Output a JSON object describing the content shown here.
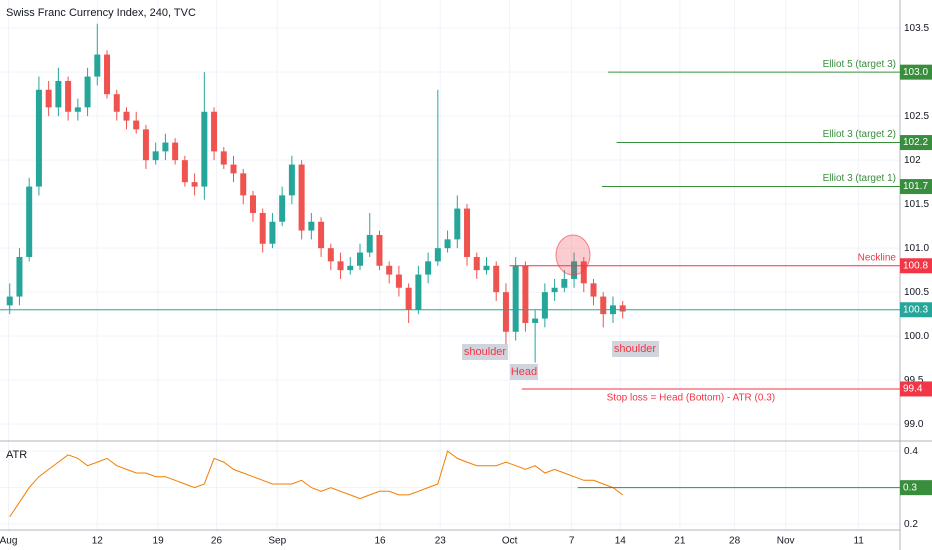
{
  "chart_data": [
    {
      "type": "candlestick",
      "title": "Swiss Franc Currency Index, 240, TVC",
      "x": [
        0.8,
        1.6,
        2.4,
        3.2,
        4,
        4.8,
        5.6,
        6.4,
        7.2,
        8,
        8.8,
        9.6,
        10.4,
        11.2,
        12,
        12.8,
        13.6,
        14.4,
        15.2,
        16,
        16.8,
        17.6,
        18.4,
        19.2,
        20,
        20.8,
        21.6,
        22.4,
        23.2,
        24,
        24.8,
        25.6,
        26.4,
        27.2,
        28,
        28.8,
        29.6,
        30.4,
        31.2,
        32,
        32.8,
        33.6,
        34.4,
        35.2,
        36,
        36.8,
        37.6,
        38.4,
        39.2,
        40,
        40.8,
        41.6,
        42.4,
        43.2,
        44,
        44.8,
        45.6,
        46.4,
        47.2,
        48,
        48.8,
        49.6,
        50.4,
        51.2
      ],
      "open": [
        100.35,
        100.45,
        100.9,
        101.7,
        102.8,
        102.6,
        102.9,
        102.55,
        102.6,
        102.95,
        103.2,
        102.75,
        102.55,
        102.45,
        102.35,
        102.0,
        102.1,
        102.2,
        102.0,
        101.75,
        101.7,
        102.55,
        102.1,
        101.95,
        101.85,
        101.6,
        101.4,
        101.05,
        101.3,
        101.6,
        101.95,
        101.2,
        101.3,
        101.0,
        100.85,
        100.75,
        100.8,
        100.95,
        101.15,
        100.8,
        100.7,
        100.55,
        100.3,
        100.7,
        100.85,
        101.0,
        101.1,
        101.45,
        100.9,
        100.75,
        100.8,
        100.5,
        100.05,
        100.8,
        100.15,
        100.2,
        100.5,
        100.55,
        100.65,
        100.85,
        100.6,
        100.45,
        100.25,
        100.35
      ],
      "close": [
        100.45,
        100.9,
        101.7,
        102.8,
        102.6,
        102.9,
        102.55,
        102.6,
        102.95,
        103.2,
        102.75,
        102.55,
        102.45,
        102.35,
        102.0,
        102.1,
        102.2,
        102.0,
        101.75,
        101.7,
        102.55,
        102.1,
        101.95,
        101.85,
        101.6,
        101.4,
        101.05,
        101.3,
        101.6,
        101.95,
        101.2,
        101.3,
        101.0,
        100.85,
        100.75,
        100.8,
        100.95,
        101.15,
        100.8,
        100.7,
        100.55,
        100.3,
        100.7,
        100.85,
        101.0,
        101.1,
        101.45,
        100.9,
        100.75,
        100.8,
        100.5,
        100.05,
        100.8,
        100.15,
        100.2,
        100.5,
        100.55,
        100.65,
        100.85,
        100.6,
        100.45,
        100.25,
        100.35,
        100.28
      ],
      "high": [
        100.6,
        101.0,
        101.8,
        102.95,
        102.9,
        103.05,
        102.95,
        102.7,
        103.05,
        103.55,
        103.25,
        102.8,
        102.6,
        102.55,
        102.4,
        102.2,
        102.3,
        102.25,
        102.05,
        101.85,
        103.0,
        102.6,
        102.15,
        102.05,
        101.9,
        101.65,
        101.45,
        101.4,
        101.7,
        102.05,
        102.0,
        101.4,
        101.35,
        101.05,
        100.95,
        100.9,
        101.05,
        101.4,
        101.2,
        100.85,
        100.8,
        100.6,
        100.8,
        100.95,
        102.8,
        101.2,
        101.6,
        101.5,
        100.95,
        100.9,
        100.85,
        100.6,
        100.9,
        100.85,
        100.3,
        100.6,
        100.65,
        100.75,
        100.95,
        100.9,
        100.65,
        100.5,
        100.45,
        100.4
      ],
      "low": [
        100.25,
        100.35,
        100.85,
        101.6,
        102.5,
        102.5,
        102.45,
        102.45,
        102.5,
        102.85,
        102.7,
        102.45,
        102.35,
        102.3,
        101.9,
        101.95,
        102.0,
        101.95,
        101.7,
        101.6,
        101.55,
        102.0,
        101.9,
        101.75,
        101.5,
        101.3,
        100.95,
        101.0,
        101.25,
        101.5,
        101.1,
        101.1,
        100.9,
        100.75,
        100.65,
        100.7,
        100.75,
        100.9,
        100.75,
        100.6,
        100.45,
        100.15,
        100.25,
        100.6,
        100.8,
        100.95,
        101.0,
        100.8,
        100.65,
        100.7,
        100.4,
        99.75,
        99.95,
        100.05,
        99.7,
        100.1,
        100.4,
        100.5,
        100.55,
        100.5,
        100.35,
        100.1,
        100.15,
        100.2
      ],
      "up_color": "#26a69a",
      "down_color": "#ef5350",
      "xlim": [
        0,
        74
      ],
      "ylim": [
        98.82,
        103.82
      ],
      "yticks": [
        {
          "value": 99,
          "label": "99.0"
        },
        99.5,
        {
          "value": 100,
          "label": "100.0"
        },
        100.5,
        {
          "value": 101,
          "label": "101.0"
        },
        101.5,
        102,
        102.5,
        {
          "value": 103,
          "label": "103.0"
        },
        103.5
      ],
      "grid": true,
      "last_price": {
        "value": 100.3,
        "color": "#26a69a"
      },
      "annotations": [
        {
          "text": "Elliot 5 (target 3)",
          "value": 103,
          "value_label": "103.0",
          "x_start": 50,
          "color": "#388e3c"
        },
        {
          "text": "Elliot 3 (target 2)",
          "value": 102.2,
          "x_start": 50.7,
          "color": "#388e3c"
        },
        {
          "text": "Elliot 3 (target 1)",
          "value": 101.7,
          "x_start": 49.5,
          "color": "#388e3c"
        },
        {
          "text": "Neckline",
          "value": 100.8,
          "x_start": 41.9,
          "color": "#f23645"
        },
        {
          "text": "Stop loss = Head (Bottom) - ATR (0.3)",
          "value": 99.4,
          "x_start": 42.9,
          "color": "#f23645"
        }
      ],
      "labels": [
        "shoulder",
        "Head",
        "shoulder"
      ]
    },
    {
      "type": "line",
      "title": "ATR",
      "x": [
        0.8,
        1.6,
        2.4,
        3.2,
        4,
        4.8,
        5.6,
        6.4,
        7.2,
        8,
        8.8,
        9.6,
        10.4,
        11.2,
        12,
        12.8,
        13.6,
        14.4,
        15.2,
        16,
        16.8,
        17.6,
        18.4,
        19.2,
        20,
        20.8,
        21.6,
        22.4,
        23.2,
        24,
        24.8,
        25.6,
        26.4,
        27.2,
        28,
        28.8,
        29.6,
        30.4,
        31.2,
        32,
        32.8,
        33.6,
        34.4,
        35.2,
        36,
        36.8,
        37.6,
        38.4,
        39.2,
        40,
        40.8,
        41.6,
        42.4,
        43.2,
        44,
        44.8,
        45.6,
        46.4,
        47.2,
        48,
        48.8,
        49.6,
        50.4,
        51.2
      ],
      "values": [
        0.22,
        0.26,
        0.3,
        0.33,
        0.35,
        0.37,
        0.39,
        0.38,
        0.36,
        0.37,
        0.38,
        0.36,
        0.35,
        0.34,
        0.34,
        0.33,
        0.33,
        0.32,
        0.31,
        0.3,
        0.31,
        0.38,
        0.37,
        0.35,
        0.34,
        0.33,
        0.32,
        0.31,
        0.31,
        0.31,
        0.32,
        0.3,
        0.29,
        0.3,
        0.29,
        0.28,
        0.27,
        0.28,
        0.29,
        0.29,
        0.28,
        0.28,
        0.29,
        0.3,
        0.31,
        0.4,
        0.38,
        0.37,
        0.36,
        0.36,
        0.36,
        0.37,
        0.36,
        0.35,
        0.36,
        0.34,
        0.35,
        0.34,
        0.33,
        0.32,
        0.32,
        0.31,
        0.3,
        0.28
      ],
      "color": "#f57c00",
      "xlim": [
        0,
        74
      ],
      "ylim": [
        0.184,
        0.425
      ],
      "yticks": [
        0.2,
        0.3,
        0.4
      ],
      "level": {
        "value": 0.3,
        "x_start": 47.5,
        "color": "#388e3c"
      },
      "xticks": [
        {
          "value": 0.7,
          "label": "Aug"
        },
        {
          "value": 8,
          "label": "12"
        },
        {
          "value": 13,
          "label": "19"
        },
        {
          "value": 17.8,
          "label": "26"
        },
        {
          "value": 22.8,
          "label": "Sep"
        },
        {
          "value": 31.25,
          "label": "16"
        },
        {
          "value": 36.2,
          "label": "23"
        },
        {
          "value": 41.9,
          "label": "Oct"
        },
        {
          "value": 47,
          "label": "7"
        },
        {
          "value": 51,
          "label": "14"
        },
        {
          "value": 55.9,
          "label": "21"
        },
        {
          "value": 60.4,
          "label": "28"
        },
        {
          "value": 64.6,
          "label": "Nov"
        },
        {
          "value": 70.6,
          "label": "11"
        }
      ]
    }
  ]
}
